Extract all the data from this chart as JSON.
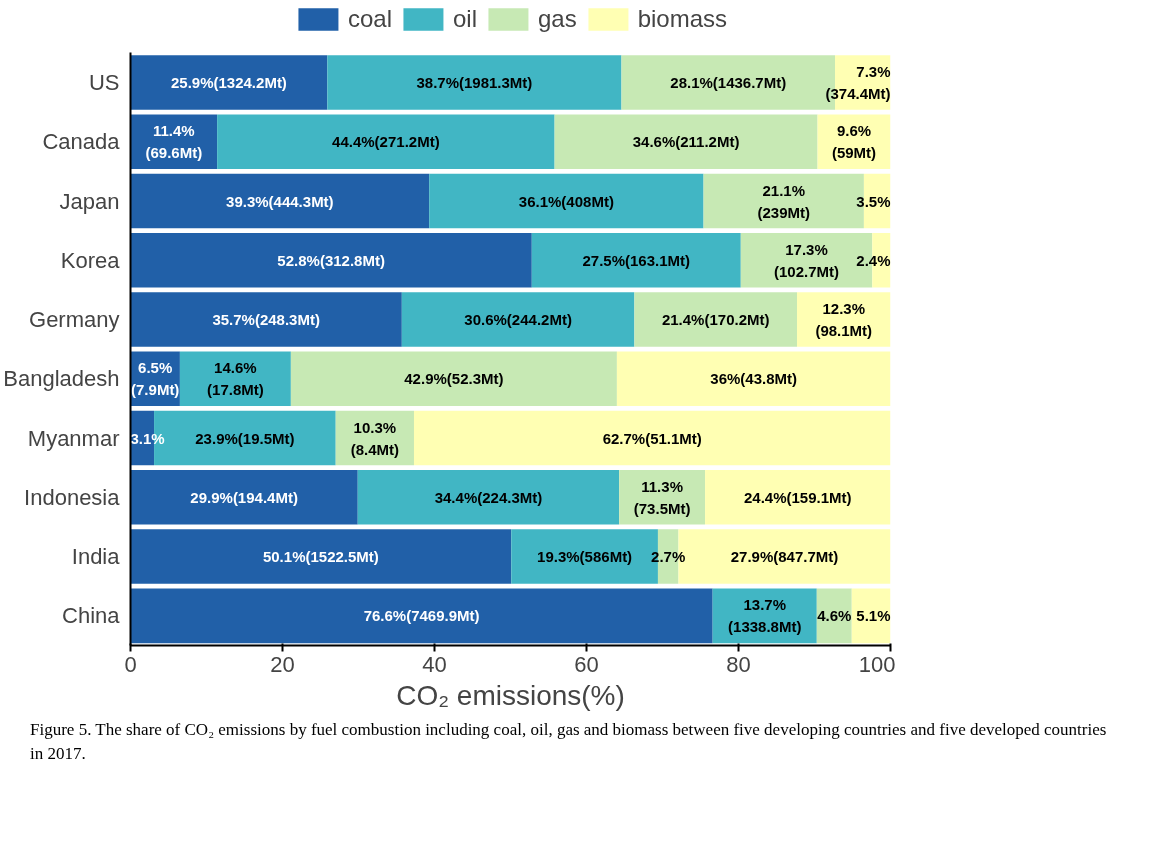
{
  "chart_data": {
    "type": "bar",
    "orientation": "horizontal",
    "stacked": true,
    "categories": [
      "US",
      "Canada",
      "Japan",
      "Korea",
      "Germany",
      "Bangladesh",
      "Myanmar",
      "Indonesia",
      "India",
      "China"
    ],
    "series": [
      {
        "name": "coal",
        "color": "#2160a8",
        "values": [
          25.9,
          11.4,
          39.3,
          52.8,
          35.7,
          6.5,
          3.1,
          29.9,
          50.1,
          76.6
        ],
        "value_labels": [
          "25.9%(1324.2Mt)",
          "11.4%\n(69.6Mt)",
          "39.3%(444.3Mt)",
          "52.8%(312.8Mt)",
          "35.7%(248.3Mt)",
          "6.5%\n(7.9Mt)",
          "3.1%",
          "29.9%(194.4Mt)",
          "50.1%(1522.5Mt)",
          "76.6%(7469.9Mt)"
        ]
      },
      {
        "name": "oil",
        "color": "#41b6c4",
        "values": [
          38.7,
          44.4,
          36.1,
          27.5,
          30.6,
          14.6,
          23.9,
          34.4,
          19.3,
          13.7
        ],
        "value_labels": [
          "38.7%(1981.3Mt)",
          "44.4%(271.2Mt)",
          "36.1%(408Mt)",
          "27.5%(163.1Mt)",
          "30.6%(244.2Mt)",
          "14.6%\n(17.8Mt)",
          "23.9%(19.5Mt)",
          "34.4%(224.3Mt)",
          "19.3%(586Mt)",
          "13.7%\n(1338.8Mt)"
        ]
      },
      {
        "name": "gas",
        "color": "#c7e9b4",
        "values": [
          28.1,
          34.6,
          21.1,
          17.3,
          21.4,
          42.9,
          10.3,
          11.3,
          2.7,
          4.6
        ],
        "value_labels": [
          "28.1%(1436.7Mt)",
          "34.6%(211.2Mt)",
          "21.1%\n(239Mt)",
          "17.3%\n(102.7Mt)",
          "21.4%(170.2Mt)",
          "42.9%(52.3Mt)",
          "10.3%\n(8.4Mt)",
          "11.3%\n(73.5Mt)",
          "2.7%",
          "4.6%"
        ]
      },
      {
        "name": "biomass",
        "color": "#ffffb3",
        "values": [
          7.3,
          9.6,
          3.5,
          2.4,
          12.3,
          36,
          62.7,
          24.4,
          27.9,
          5.1
        ],
        "value_labels": [
          "7.3%\n(374.4Mt)",
          "9.6%\n(59Mt)",
          "3.5%",
          "2.4%",
          "12.3%\n(98.1Mt)",
          "36%(43.8Mt)",
          "62.7%(51.1Mt)",
          "24.4%(159.1Mt)",
          "27.9%(847.7Mt)",
          "5.1%"
        ]
      }
    ],
    "xlim": [
      0,
      100
    ],
    "xticks": [
      0,
      20,
      40,
      60,
      80,
      100
    ],
    "xlabel": "CO₂ emissions(%)",
    "legend": "top",
    "grid": false,
    "annotations": [
      "Figure 5. The share of CO₂ emissions by fuel combustion including coal, oil, gas and biomass between five developing countries and five developed countries in 2017."
    ]
  }
}
